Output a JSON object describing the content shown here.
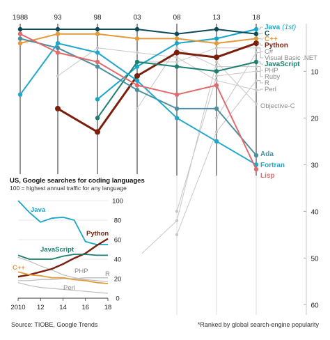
{
  "chart_data": [
    {
      "type": "line",
      "subtype": "bump-rank",
      "x": [
        1988,
        1993,
        1998,
        2003,
        2008,
        2013,
        2018
      ],
      "x_tick_labels": [
        "1988",
        "93",
        "98",
        "03",
        "08",
        "13",
        "18"
      ],
      "ylim": [
        60,
        0
      ],
      "y_ticks": [
        10,
        20,
        30,
        40,
        50,
        60
      ],
      "y_reversed": true,
      "grid": "vertical-dark-and-faint",
      "series": [
        {
          "name": "Java",
          "note": "(1st)",
          "color": "#17a6c9",
          "emphasis": true,
          "values": [
            null,
            null,
            16,
            9,
            4,
            3,
            1
          ]
        },
        {
          "name": "C",
          "color": "#0b4a57",
          "emphasis": true,
          "values": [
            1,
            1,
            1,
            1,
            2,
            1,
            2
          ]
        },
        {
          "name": "C++",
          "color": "#e39b3a",
          "emphasis": true,
          "values": [
            4,
            2,
            2,
            3,
            3,
            4,
            3
          ]
        },
        {
          "name": "Python",
          "color": "#7a1f0b",
          "emphasis": true,
          "values": [
            null,
            18,
            23,
            11,
            6,
            7,
            4
          ]
        },
        {
          "name": "C#",
          "color": "#c7c7c7",
          "emphasis": false,
          "values": [
            null,
            null,
            null,
            8,
            8,
            5,
            5
          ]
        },
        {
          "name": "Visual Basic .NET",
          "color": "#c7c7c7",
          "emphasis": false,
          "values": [
            null,
            null,
            null,
            null,
            null,
            20,
            6
          ]
        },
        {
          "name": "JavaScript",
          "color": "#1a7f6f",
          "emphasis": true,
          "values": [
            null,
            null,
            20,
            8,
            9,
            10,
            8
          ]
        },
        {
          "name": "PHP",
          "color": "#c7c7c7",
          "emphasis": false,
          "values": [
            null,
            null,
            null,
            18,
            5,
            9,
            9
          ]
        },
        {
          "name": "Ruby",
          "color": "#c7c7c7",
          "emphasis": false,
          "values": [
            null,
            null,
            null,
            null,
            40,
            11,
            10
          ]
        },
        {
          "name": "R",
          "color": "#c7c7c7",
          "emphasis": false,
          "values": [
            null,
            null,
            null,
            null,
            45,
            23,
            12
          ]
        },
        {
          "name": "Perl",
          "color": "#c7c7c7",
          "emphasis": false,
          "values": [
            null,
            11,
            5,
            6,
            7,
            12,
            14
          ]
        },
        {
          "name": "Objective-C",
          "color": "#c7c7c7",
          "emphasis": false,
          "values": [
            null,
            null,
            null,
            50,
            42,
            8,
            17
          ]
        },
        {
          "name": "Ada",
          "color": "#4a8fa0",
          "emphasis": true,
          "values": [
            3,
            5,
            9,
            14,
            18,
            18,
            28
          ]
        },
        {
          "name": "Fortran",
          "color": "#21a7cc",
          "emphasis": true,
          "values": [
            15,
            4,
            6,
            12,
            20,
            25,
            30
          ]
        },
        {
          "name": "Lisp",
          "color": "#e06a6c",
          "emphasis": true,
          "values": [
            2,
            6,
            8,
            13,
            15,
            13,
            31
          ]
        }
      ]
    },
    {
      "type": "line",
      "title": "US, Google searches for coding languages",
      "subtitle": "100 = highest annual traffic for any language",
      "x": [
        2010,
        2011,
        2012,
        2013,
        2014,
        2015,
        2016,
        2017,
        2018
      ],
      "x_tick_labels": [
        "2010",
        "12",
        "14",
        "16",
        "18"
      ],
      "x_tick_values": [
        2010,
        2012,
        2014,
        2016,
        2018
      ],
      "ylim": [
        0,
        100
      ],
      "y_ticks": [
        0,
        20,
        40,
        60,
        80,
        100
      ],
      "series": [
        {
          "name": "Java",
          "color": "#17a6c9",
          "emphasis": true,
          "values": [
            100,
            88,
            78,
            82,
            83,
            80,
            58,
            55,
            55
          ]
        },
        {
          "name": "Python",
          "color": "#7a1f0b",
          "emphasis": true,
          "values": [
            22,
            24,
            27,
            30,
            35,
            41,
            46,
            54,
            61
          ]
        },
        {
          "name": "JavaScript",
          "color": "#1a7f6f",
          "emphasis": true,
          "values": [
            44,
            40,
            40,
            40,
            43,
            45,
            45,
            44,
            44
          ]
        },
        {
          "name": "C++",
          "color": "#e39b3a",
          "emphasis": true,
          "values": [
            27,
            24,
            23,
            21,
            21,
            19,
            18,
            16,
            15
          ]
        },
        {
          "name": "PHP",
          "color": "#bdbdbd",
          "emphasis": false,
          "values": [
            42,
            38,
            33,
            29,
            24,
            21,
            19,
            18,
            17
          ]
        },
        {
          "name": "R",
          "color": "#bdbdbd",
          "emphasis": false,
          "values": [
            18,
            18,
            19,
            19,
            20,
            20,
            21,
            21,
            21
          ]
        },
        {
          "name": "Perl",
          "color": "#bdbdbd",
          "emphasis": false,
          "values": [
            16,
            13,
            11,
            10,
            9,
            8,
            7,
            6,
            5
          ]
        }
      ]
    }
  ],
  "footer": {
    "source": "Source: TIOBE, Google Trends",
    "note": "*Ranked by global search-engine popularity"
  }
}
